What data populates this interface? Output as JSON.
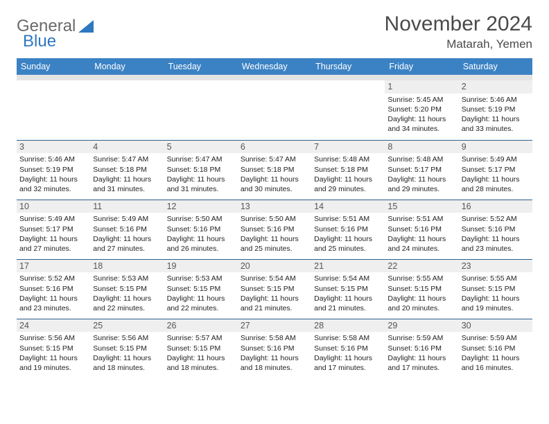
{
  "logo": {
    "part1": "General",
    "part2": "Blue"
  },
  "title": "November 2024",
  "location": "Matarah, Yemen",
  "colors": {
    "header_bg": "#3b82c4",
    "header_text": "#ffffff",
    "row_sep": "#2e5f8f",
    "daynum_bg": "#efefef",
    "spacer_bg": "#e4e4e4",
    "logo_gray": "#6a6a6a",
    "logo_blue": "#2e78c0"
  },
  "weekdays": [
    "Sunday",
    "Monday",
    "Tuesday",
    "Wednesday",
    "Thursday",
    "Friday",
    "Saturday"
  ],
  "weeks": [
    [
      {
        "day": "",
        "sunrise": "",
        "sunset": "",
        "daylight": ""
      },
      {
        "day": "",
        "sunrise": "",
        "sunset": "",
        "daylight": ""
      },
      {
        "day": "",
        "sunrise": "",
        "sunset": "",
        "daylight": ""
      },
      {
        "day": "",
        "sunrise": "",
        "sunset": "",
        "daylight": ""
      },
      {
        "day": "",
        "sunrise": "",
        "sunset": "",
        "daylight": ""
      },
      {
        "day": "1",
        "sunrise": "Sunrise: 5:45 AM",
        "sunset": "Sunset: 5:20 PM",
        "daylight": "Daylight: 11 hours and 34 minutes."
      },
      {
        "day": "2",
        "sunrise": "Sunrise: 5:46 AM",
        "sunset": "Sunset: 5:19 PM",
        "daylight": "Daylight: 11 hours and 33 minutes."
      }
    ],
    [
      {
        "day": "3",
        "sunrise": "Sunrise: 5:46 AM",
        "sunset": "Sunset: 5:19 PM",
        "daylight": "Daylight: 11 hours and 32 minutes."
      },
      {
        "day": "4",
        "sunrise": "Sunrise: 5:47 AM",
        "sunset": "Sunset: 5:18 PM",
        "daylight": "Daylight: 11 hours and 31 minutes."
      },
      {
        "day": "5",
        "sunrise": "Sunrise: 5:47 AM",
        "sunset": "Sunset: 5:18 PM",
        "daylight": "Daylight: 11 hours and 31 minutes."
      },
      {
        "day": "6",
        "sunrise": "Sunrise: 5:47 AM",
        "sunset": "Sunset: 5:18 PM",
        "daylight": "Daylight: 11 hours and 30 minutes."
      },
      {
        "day": "7",
        "sunrise": "Sunrise: 5:48 AM",
        "sunset": "Sunset: 5:18 PM",
        "daylight": "Daylight: 11 hours and 29 minutes."
      },
      {
        "day": "8",
        "sunrise": "Sunrise: 5:48 AM",
        "sunset": "Sunset: 5:17 PM",
        "daylight": "Daylight: 11 hours and 29 minutes."
      },
      {
        "day": "9",
        "sunrise": "Sunrise: 5:49 AM",
        "sunset": "Sunset: 5:17 PM",
        "daylight": "Daylight: 11 hours and 28 minutes."
      }
    ],
    [
      {
        "day": "10",
        "sunrise": "Sunrise: 5:49 AM",
        "sunset": "Sunset: 5:17 PM",
        "daylight": "Daylight: 11 hours and 27 minutes."
      },
      {
        "day": "11",
        "sunrise": "Sunrise: 5:49 AM",
        "sunset": "Sunset: 5:16 PM",
        "daylight": "Daylight: 11 hours and 27 minutes."
      },
      {
        "day": "12",
        "sunrise": "Sunrise: 5:50 AM",
        "sunset": "Sunset: 5:16 PM",
        "daylight": "Daylight: 11 hours and 26 minutes."
      },
      {
        "day": "13",
        "sunrise": "Sunrise: 5:50 AM",
        "sunset": "Sunset: 5:16 PM",
        "daylight": "Daylight: 11 hours and 25 minutes."
      },
      {
        "day": "14",
        "sunrise": "Sunrise: 5:51 AM",
        "sunset": "Sunset: 5:16 PM",
        "daylight": "Daylight: 11 hours and 25 minutes."
      },
      {
        "day": "15",
        "sunrise": "Sunrise: 5:51 AM",
        "sunset": "Sunset: 5:16 PM",
        "daylight": "Daylight: 11 hours and 24 minutes."
      },
      {
        "day": "16",
        "sunrise": "Sunrise: 5:52 AM",
        "sunset": "Sunset: 5:16 PM",
        "daylight": "Daylight: 11 hours and 23 minutes."
      }
    ],
    [
      {
        "day": "17",
        "sunrise": "Sunrise: 5:52 AM",
        "sunset": "Sunset: 5:16 PM",
        "daylight": "Daylight: 11 hours and 23 minutes."
      },
      {
        "day": "18",
        "sunrise": "Sunrise: 5:53 AM",
        "sunset": "Sunset: 5:15 PM",
        "daylight": "Daylight: 11 hours and 22 minutes."
      },
      {
        "day": "19",
        "sunrise": "Sunrise: 5:53 AM",
        "sunset": "Sunset: 5:15 PM",
        "daylight": "Daylight: 11 hours and 22 minutes."
      },
      {
        "day": "20",
        "sunrise": "Sunrise: 5:54 AM",
        "sunset": "Sunset: 5:15 PM",
        "daylight": "Daylight: 11 hours and 21 minutes."
      },
      {
        "day": "21",
        "sunrise": "Sunrise: 5:54 AM",
        "sunset": "Sunset: 5:15 PM",
        "daylight": "Daylight: 11 hours and 21 minutes."
      },
      {
        "day": "22",
        "sunrise": "Sunrise: 5:55 AM",
        "sunset": "Sunset: 5:15 PM",
        "daylight": "Daylight: 11 hours and 20 minutes."
      },
      {
        "day": "23",
        "sunrise": "Sunrise: 5:55 AM",
        "sunset": "Sunset: 5:15 PM",
        "daylight": "Daylight: 11 hours and 19 minutes."
      }
    ],
    [
      {
        "day": "24",
        "sunrise": "Sunrise: 5:56 AM",
        "sunset": "Sunset: 5:15 PM",
        "daylight": "Daylight: 11 hours and 19 minutes."
      },
      {
        "day": "25",
        "sunrise": "Sunrise: 5:56 AM",
        "sunset": "Sunset: 5:15 PM",
        "daylight": "Daylight: 11 hours and 18 minutes."
      },
      {
        "day": "26",
        "sunrise": "Sunrise: 5:57 AM",
        "sunset": "Sunset: 5:15 PM",
        "daylight": "Daylight: 11 hours and 18 minutes."
      },
      {
        "day": "27",
        "sunrise": "Sunrise: 5:58 AM",
        "sunset": "Sunset: 5:16 PM",
        "daylight": "Daylight: 11 hours and 18 minutes."
      },
      {
        "day": "28",
        "sunrise": "Sunrise: 5:58 AM",
        "sunset": "Sunset: 5:16 PM",
        "daylight": "Daylight: 11 hours and 17 minutes."
      },
      {
        "day": "29",
        "sunrise": "Sunrise: 5:59 AM",
        "sunset": "Sunset: 5:16 PM",
        "daylight": "Daylight: 11 hours and 17 minutes."
      },
      {
        "day": "30",
        "sunrise": "Sunrise: 5:59 AM",
        "sunset": "Sunset: 5:16 PM",
        "daylight": "Daylight: 11 hours and 16 minutes."
      }
    ]
  ]
}
